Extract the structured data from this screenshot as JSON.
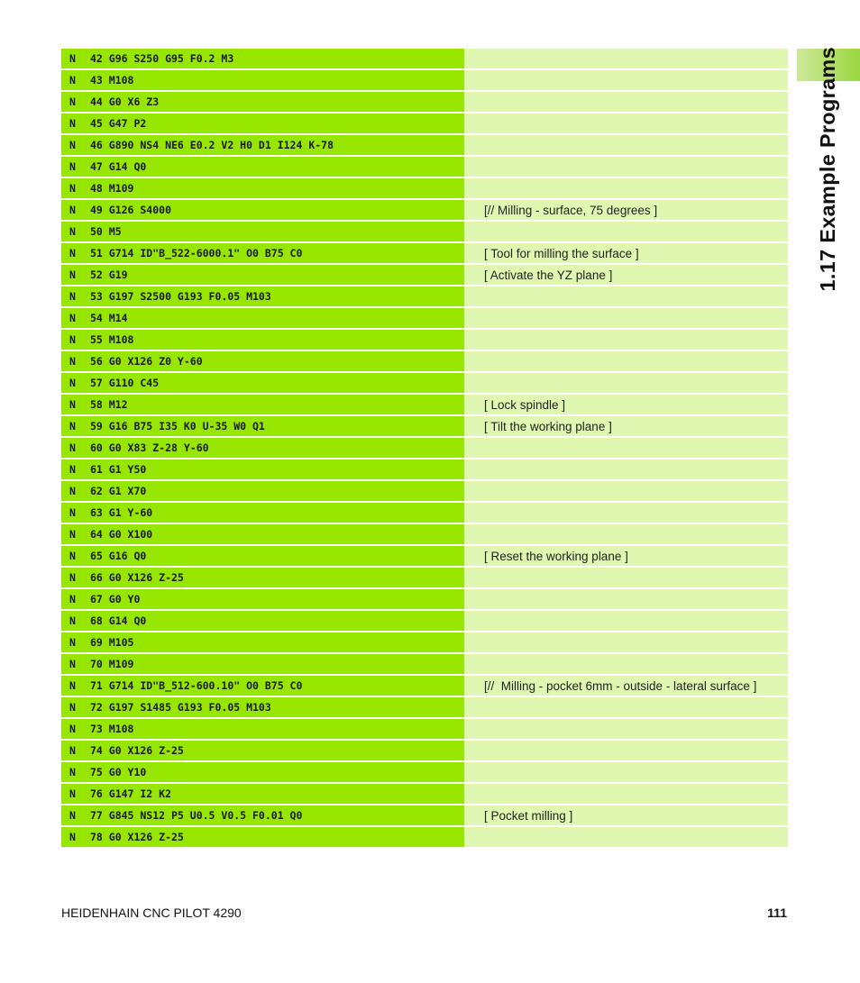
{
  "chapter_title": "1.17 Example Programs",
  "footer": {
    "product": "HEIDENHAIN CNC PILOT 4290",
    "page_number": "111"
  },
  "rows": [
    {
      "n": "N",
      "code": "42 G96 S250 G95 F0.2 M3",
      "comment": ""
    },
    {
      "n": "N",
      "code": "43 M108",
      "comment": ""
    },
    {
      "n": "N",
      "code": "44 G0 X6 Z3",
      "comment": ""
    },
    {
      "n": "N",
      "code": "45 G47 P2",
      "comment": ""
    },
    {
      "n": "N",
      "code": "46 G890 NS4 NE6 E0.2 V2 H0 D1 I124 K-78",
      "comment": ""
    },
    {
      "n": "N",
      "code": "47 G14 Q0",
      "comment": ""
    },
    {
      "n": "N",
      "code": "48 M109",
      "comment": ""
    },
    {
      "n": "N",
      "code": "49 G126 S4000",
      "comment": "[// Milling - surface, 75 degrees ]"
    },
    {
      "n": "N",
      "code": "50 M5",
      "comment": ""
    },
    {
      "n": "N",
      "code": "51 G714 ID\"B_522-6000.1\" O0 B75 C0",
      "comment": "[ Tool for milling the surface ]"
    },
    {
      "n": "N",
      "code": "52 G19",
      "comment": "[ Activate the YZ plane ]"
    },
    {
      "n": "N",
      "code": "53 G197 S2500 G193 F0.05 M103",
      "comment": ""
    },
    {
      "n": "N",
      "code": "54 M14",
      "comment": ""
    },
    {
      "n": "N",
      "code": "55 M108",
      "comment": ""
    },
    {
      "n": "N",
      "code": "56 G0 X126 Z0 Y-60",
      "comment": ""
    },
    {
      "n": "N",
      "code": "57 G110 C45",
      "comment": ""
    },
    {
      "n": "N",
      "code": "58 M12",
      "comment": "[ Lock spindle ]"
    },
    {
      "n": "N",
      "code": "59 G16 B75 I35 K0 U-35 W0 Q1",
      "comment": "[ Tilt the working plane ]"
    },
    {
      "n": "N",
      "code": "60 G0 X83 Z-28 Y-60",
      "comment": ""
    },
    {
      "n": "N",
      "code": "61 G1 Y50",
      "comment": ""
    },
    {
      "n": "N",
      "code": "62 G1 X70",
      "comment": ""
    },
    {
      "n": "N",
      "code": "63 G1 Y-60",
      "comment": ""
    },
    {
      "n": "N",
      "code": "64 G0 X100",
      "comment": ""
    },
    {
      "n": "N",
      "code": "65 G16 Q0",
      "comment": "[ Reset the working plane ]"
    },
    {
      "n": "N",
      "code": "66 G0 X126 Z-25",
      "comment": ""
    },
    {
      "n": "N",
      "code": "67 G0 Y0",
      "comment": ""
    },
    {
      "n": "N",
      "code": "68 G14 Q0",
      "comment": ""
    },
    {
      "n": "N",
      "code": "69 M105",
      "comment": ""
    },
    {
      "n": "N",
      "code": "70 M109",
      "comment": ""
    },
    {
      "n": "N",
      "code": "71 G714 ID\"B_512-600.10\" O0 B75 C0",
      "comment": "[//  Milling - pocket 6mm - outside - lateral surface ]"
    },
    {
      "n": "N",
      "code": "72 G197 S1485 G193 F0.05 M103",
      "comment": ""
    },
    {
      "n": "N",
      "code": "73 M108",
      "comment": ""
    },
    {
      "n": "N",
      "code": "74 G0 X126 Z-25",
      "comment": ""
    },
    {
      "n": "N",
      "code": "75 G0 Y10",
      "comment": ""
    },
    {
      "n": "N",
      "code": "76 G147 I2 K2",
      "comment": ""
    },
    {
      "n": "N",
      "code": "77 G845 NS12 P5 U0.5 V0.5 F0.01 Q0",
      "comment": "[ Pocket milling ]"
    },
    {
      "n": "N",
      "code": "78 G0 X126 Z-25",
      "comment": ""
    }
  ]
}
